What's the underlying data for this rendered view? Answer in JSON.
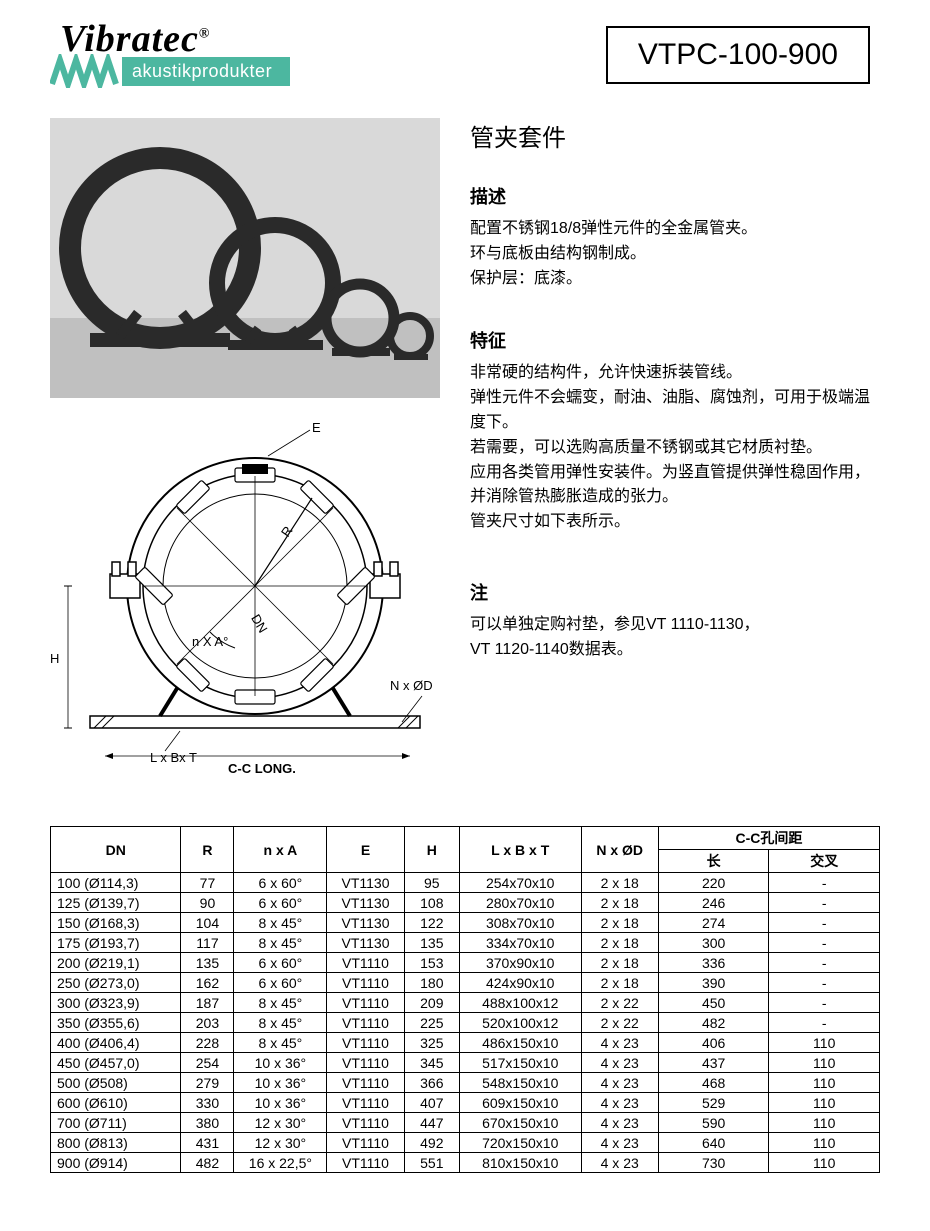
{
  "brand": {
    "name": "Vibratec",
    "reg": "®",
    "subtitle": "akustikprodukter",
    "accent_color": "#4cb7a0"
  },
  "part_number": "VTPC-100-900",
  "title": "管夹套件",
  "sections": {
    "desc_h": "描述",
    "desc_lines": [
      "配置不锈钢18/8弹性元件的全金属管夹。",
      "环与底板由结构钢制成。",
      "保护层：底漆。"
    ],
    "feat_h": "特征",
    "feat_lines": [
      "非常硬的结构件，允许快速拆装管线。",
      "弹性元件不会蠕变，耐油、油脂、腐蚀剂，可用于极端温度下。",
      "若需要，可以选购高质量不锈钢或其它材质衬垫。",
      "应用各类管用弹性安装件。为竖直管提供弹性稳固作用，并消除管热膨胀造成的张力。",
      "管夹尺寸如下表所示。"
    ],
    "note_h": "注",
    "note_lines": [
      "可以单独定购衬垫，参见VT 1110-1130，",
      "VT 1120-1140数据表。"
    ]
  },
  "diagram_labels": {
    "E": "E",
    "R": "R",
    "DN": "DN",
    "nxA": "n X A°",
    "H": "H",
    "NxD": "N x ØD",
    "LxBxT": "L x Bx T",
    "CC": "C-C LONG."
  },
  "table": {
    "headers": {
      "dn": "DN",
      "r": "R",
      "nxa": "n x A",
      "e": "E",
      "h": "H",
      "lbt": "L x B x T",
      "nxd": "N x ØD",
      "cc": "C-C孔间距",
      "cc_long": "长",
      "cc_cross": "交叉"
    },
    "rows": [
      {
        "dn": "100 (Ø114,3)",
        "r": "77",
        "nxa": "6 x 60°",
        "e": "VT1130",
        "h": "95",
        "lbt": "254x70x10",
        "nxd": "2 x 18",
        "cc1": "220",
        "cc2": "-"
      },
      {
        "dn": "125 (Ø139,7)",
        "r": "90",
        "nxa": "6 x 60°",
        "e": "VT1130",
        "h": "108",
        "lbt": "280x70x10",
        "nxd": "2 x 18",
        "cc1": "246",
        "cc2": "-"
      },
      {
        "dn": "150 (Ø168,3)",
        "r": "104",
        "nxa": "8 x 45°",
        "e": "VT1130",
        "h": "122",
        "lbt": "308x70x10",
        "nxd": "2 x 18",
        "cc1": "274",
        "cc2": "-"
      },
      {
        "dn": "175 (Ø193,7)",
        "r": "117",
        "nxa": "8 x 45°",
        "e": "VT1130",
        "h": "135",
        "lbt": "334x70x10",
        "nxd": "2 x 18",
        "cc1": "300",
        "cc2": "-"
      },
      {
        "dn": "200 (Ø219,1)",
        "r": "135",
        "nxa": "6 x 60°",
        "e": "VT1110",
        "h": "153",
        "lbt": "370x90x10",
        "nxd": "2 x 18",
        "cc1": "336",
        "cc2": "-"
      },
      {
        "dn": "250 (Ø273,0)",
        "r": "162",
        "nxa": "6 x 60°",
        "e": "VT1110",
        "h": "180",
        "lbt": "424x90x10",
        "nxd": "2 x 18",
        "cc1": "390",
        "cc2": "-"
      },
      {
        "dn": "300 (Ø323,9)",
        "r": "187",
        "nxa": "8 x 45°",
        "e": "VT1110",
        "h": "209",
        "lbt": "488x100x12",
        "nxd": "2 x 22",
        "cc1": "450",
        "cc2": "-"
      },
      {
        "dn": "350 (Ø355,6)",
        "r": "203",
        "nxa": "8 x 45°",
        "e": "VT1110",
        "h": "225",
        "lbt": "520x100x12",
        "nxd": "2 x 22",
        "cc1": "482",
        "cc2": "-"
      },
      {
        "dn": "400 (Ø406,4)",
        "r": "228",
        "nxa": "8 x 45°",
        "e": "VT1110",
        "h": "325",
        "lbt": "486x150x10",
        "nxd": "4 x 23",
        "cc1": "406",
        "cc2": "110"
      },
      {
        "dn": "450 (Ø457,0)",
        "r": "254",
        "nxa": "10 x 36°",
        "e": "VT1110",
        "h": "345",
        "lbt": "517x150x10",
        "nxd": "4 x 23",
        "cc1": "437",
        "cc2": "110"
      },
      {
        "dn": "500 (Ø508)",
        "r": "279",
        "nxa": "10 x 36°",
        "e": "VT1110",
        "h": "366",
        "lbt": "548x150x10",
        "nxd": "4 x 23",
        "cc1": "468",
        "cc2": "110"
      },
      {
        "dn": "600 (Ø610)",
        "r": "330",
        "nxa": "10 x 36°",
        "e": "VT1110",
        "h": "407",
        "lbt": "609x150x10",
        "nxd": "4 x 23",
        "cc1": "529",
        "cc2": "110"
      },
      {
        "dn": "700 (Ø711)",
        "r": "380",
        "nxa": "12 x 30°",
        "e": "VT1110",
        "h": "447",
        "lbt": "670x150x10",
        "nxd": "4 x 23",
        "cc1": "590",
        "cc2": "110"
      },
      {
        "dn": "800 (Ø813)",
        "r": "431",
        "nxa": "12 x 30°",
        "e": "VT1110",
        "h": "492",
        "lbt": "720x150x10",
        "nxd": "4 x 23",
        "cc1": "640",
        "cc2": "110"
      },
      {
        "dn": "900 (Ø914)",
        "r": "482",
        "nxa": "16 x 22,5°",
        "e": "VT1110",
        "h": "551",
        "lbt": "810x150x10",
        "nxd": "4 x 23",
        "cc1": "730",
        "cc2": "110"
      }
    ]
  }
}
